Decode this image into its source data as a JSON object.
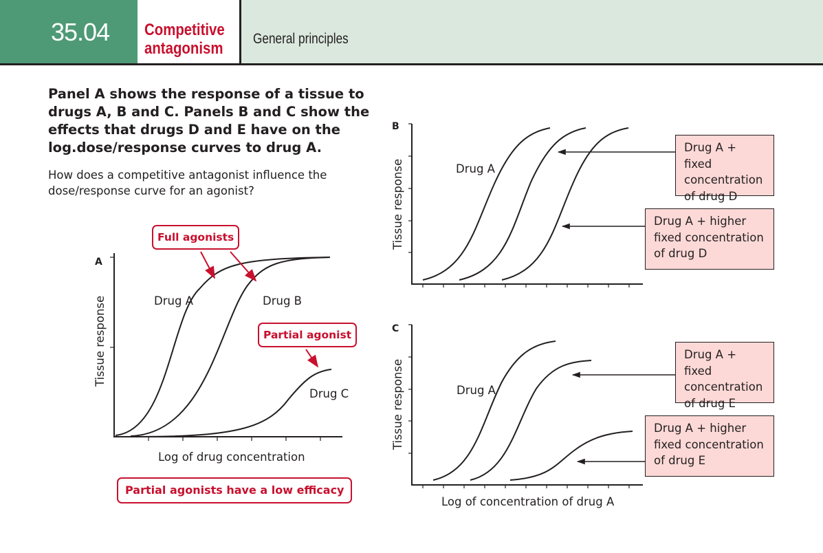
{
  "header": {
    "number_main": "35.",
    "number_sub": "04",
    "title_line1": "Competitive",
    "title_line2": "antagonism",
    "section": "General principles"
  },
  "intro": {
    "bold_text": "Panel A shows the response of a tissue to drugs A, B and C. Panels B and C show the effects that drugs D and E have on the log.dose/response curves to drug A.",
    "question": "How does a competitive antagonist influence the dose/response curve for an agonist?"
  },
  "panel_a": {
    "label": "A",
    "ylabel": "Tissue response",
    "xlabel": "Log of drug concentration",
    "curve_labels": [
      "Drug A",
      "Drug B",
      "Drug C"
    ],
    "callout_full": "Full agonists",
    "callout_partial": "Partial agonist",
    "footer_callout": "Partial agonists have a low efficacy"
  },
  "panel_b": {
    "label": "B",
    "ylabel": "Tissue response",
    "curve_label": "Drug A",
    "note_1": "Drug A + fixed concentration of drug D",
    "note_2": "Drug A + higher fixed concentration of drug D"
  },
  "panel_c": {
    "label": "C",
    "ylabel": "Tissue response",
    "xlabel": "Log of concentration of drug A",
    "curve_label": "Drug A",
    "note_1": "Drug A + fixed concentration of drug E",
    "note_2": "Drug A + higher fixed concentration of drug E"
  },
  "colors": {
    "header_green": "#4e9a76",
    "header_bg": "#dbe8de",
    "accent_red": "#c8102e",
    "note_fill": "#fcd9d7"
  }
}
